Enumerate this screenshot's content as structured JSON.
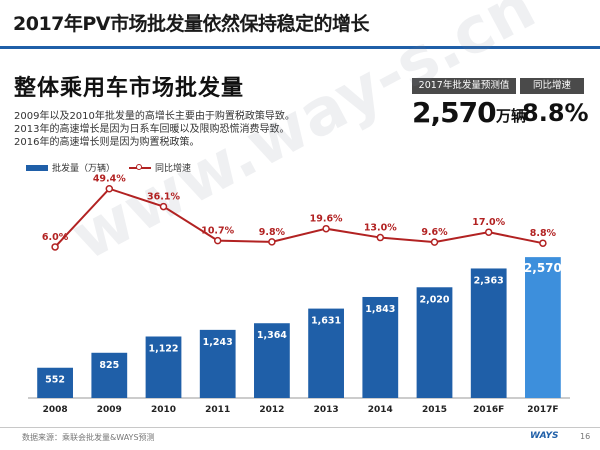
{
  "slide": {
    "title": "2017年PV市场批发量依然保持稳定的增长",
    "subtitle": "整体乘用车市场批发量",
    "notes": [
      "2009年以及2010年批发量的高增长主要由于购置税政策导致。",
      "2013年的高速增长是因为日系车回暖以及限购恐慌消费导致。",
      "2016年的高速增长则是因为购置税政策。"
    ],
    "watermark": "www.way-s.cn",
    "source": "数据来源：乘联会批发量&WAYS预测",
    "logo": "WAYS",
    "page_number": "16"
  },
  "kpi": {
    "forecast_label": "2017年批发量预测值",
    "forecast_value": "2,570",
    "forecast_unit": "万辆",
    "growth_label": "同比增速",
    "growth_value": "8.8%"
  },
  "colors": {
    "bar": "#1f5fa8",
    "bar_highlight": "#3d8fdc",
    "line": "#b22222",
    "accent": "#1f5fa8"
  },
  "chart_data": {
    "type": "bar",
    "categories": [
      "2008",
      "2009",
      "2010",
      "2011",
      "2012",
      "2013",
      "2014",
      "2015",
      "2016F",
      "2017F"
    ],
    "series": [
      {
        "name": "批发量（万辆）",
        "type": "bar",
        "values": [
          552,
          825,
          1122,
          1243,
          1364,
          1631,
          1843,
          2020,
          2363,
          2570
        ],
        "labels": [
          "552",
          "825",
          "1,122",
          "1,243",
          "1,364",
          "1,631",
          "1,843",
          "2,020",
          "2,363",
          "2,570"
        ]
      },
      {
        "name": "同比增速",
        "type": "line",
        "values": [
          6.0,
          49.4,
          36.1,
          10.7,
          9.8,
          19.6,
          13.0,
          9.6,
          17.0,
          8.8
        ],
        "labels": [
          "6.0%",
          "49.4%",
          "36.1%",
          "10.7%",
          "9.8%",
          "19.6%",
          "13.0%",
          "9.6%",
          "17.0%",
          "8.8%"
        ]
      }
    ],
    "highlight_category": "2017F",
    "ylim": [
      0,
      2700
    ],
    "y2lim": [
      0,
      60
    ],
    "legend_position": "top-left",
    "grid": false
  }
}
